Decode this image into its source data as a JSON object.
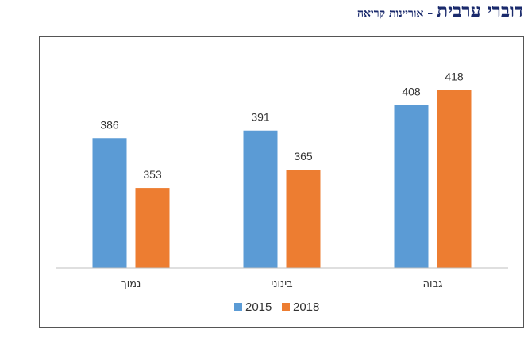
{
  "header": {
    "title": "דוברי ערבית",
    "separator": " – ",
    "subtitle": "אוריינות קריאה"
  },
  "chart_data": {
    "type": "bar",
    "categories": [
      "נמוך",
      "בינוני",
      "גבוה"
    ],
    "series": [
      {
        "name": "2015",
        "values": [
          386,
          391,
          408
        ],
        "color": "#5b9bd5"
      },
      {
        "name": "2018",
        "values": [
          353,
          365,
          418
        ],
        "color": "#ed7d31"
      }
    ],
    "ylim": [
      300,
      425
    ],
    "grid": false,
    "legend": "bottom",
    "title": "",
    "xlabel": "",
    "ylabel": ""
  }
}
